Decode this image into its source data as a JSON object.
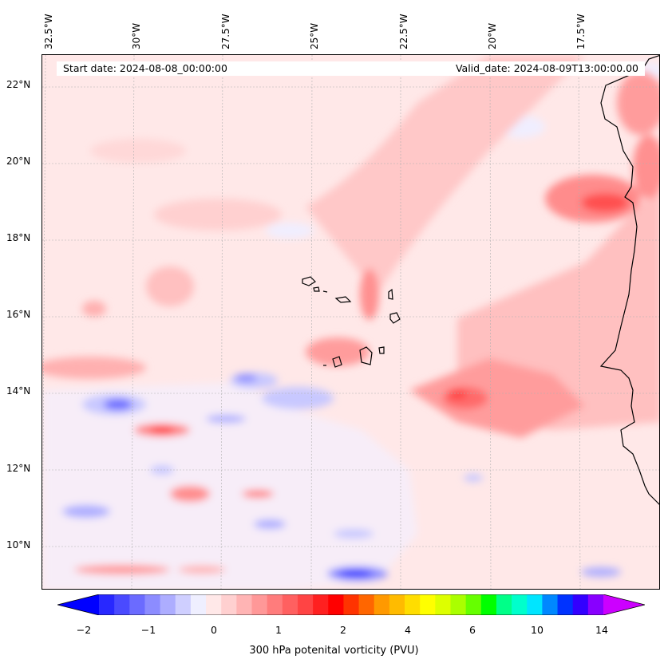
{
  "header": {
    "start_date": "Start date: 2024-08-08_00:00:00",
    "valid_date": "Valid_date: 2024-08-09T13:00:00.00"
  },
  "map": {
    "longitude_labels": [
      "32.5°W",
      "30°W",
      "27.5°W",
      "25°W",
      "22.5°W",
      "20°W",
      "17.5°W"
    ],
    "latitude_labels": [
      "22°N",
      "20°N",
      "18°N",
      "16°N",
      "14°N",
      "12°N",
      "10°N"
    ],
    "gridlines": true
  },
  "colorbar": {
    "label": "300 hPa potenital vorticity (PVU)",
    "tick_labels": [
      "−2",
      "−1",
      "0",
      "1",
      "2",
      "4",
      "6",
      "10",
      "14"
    ],
    "colors": [
      "#0000ff",
      "#2828ff",
      "#4a4aff",
      "#6b6bff",
      "#8c8cff",
      "#adadff",
      "#cfcfff",
      "#efefff",
      "#ffe8e8",
      "#ffd0d0",
      "#ffb4b4",
      "#ff9898",
      "#ff7c7c",
      "#ff6060",
      "#ff4444",
      "#ff2020",
      "#ff0000",
      "#ff3300",
      "#ff6600",
      "#ff9900",
      "#ffbb00",
      "#ffdd00",
      "#ffff00",
      "#ddff00",
      "#aaff00",
      "#66ff00",
      "#00ff00",
      "#00ff88",
      "#00ffcc",
      "#00e5ff",
      "#0088ff",
      "#0033ff",
      "#3300ff",
      "#8800ff",
      "#cc00ff"
    ]
  }
}
